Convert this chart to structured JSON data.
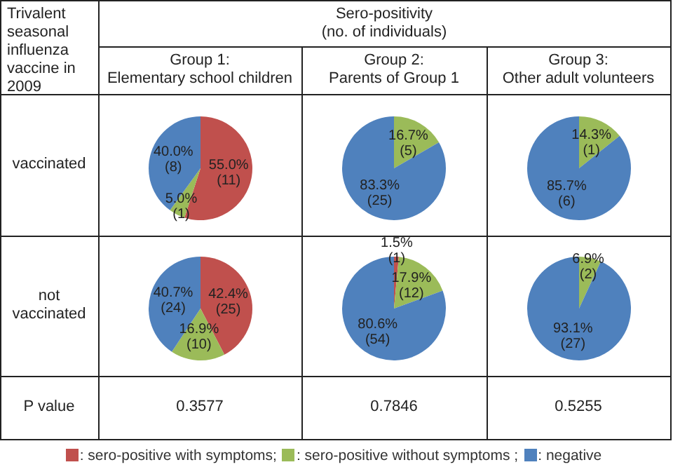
{
  "chart_data": [
    {
      "type": "other",
      "annotations": [
        "Trivalent seasonal influenza vaccine in 2009",
        "Sero-positivity\n(no. of individuals)",
        "Group 1:\nElementary school children",
        "Group 2:\nParents of Group 1",
        "Group 3:\nOther adult volunteers",
        "vaccinated",
        "not\nvaccinated",
        "P value",
        "0.3577",
        "0.7846",
        "0.5255",
        ": sero-positive with symptoms;",
        ": sero-positive without symptoms ;",
        ": negative"
      ]
    },
    {
      "type": "pie",
      "categories": [
        null,
        null,
        null
      ],
      "values": [
        11,
        1,
        8
      ],
      "colors": [
        "#c0504d",
        "#9bbb59",
        "#4f81bd"
      ],
      "value_labels": [
        "55.0%\n(11)",
        "5.0%\n(1)",
        "40.0%\n(8)"
      ]
    },
    {
      "type": "pie",
      "categories": [
        null,
        null,
        null
      ],
      "values": [
        0,
        5,
        25
      ],
      "colors": [
        "#c0504d",
        "#9bbb59",
        "#4f81bd"
      ],
      "value_labels": [
        null,
        "16.7%\n(5)",
        "83.3%\n(25)"
      ]
    },
    {
      "type": "pie",
      "categories": [
        null,
        null,
        null
      ],
      "values": [
        0,
        1,
        6
      ],
      "colors": [
        "#c0504d",
        "#9bbb59",
        "#4f81bd"
      ],
      "value_labels": [
        null,
        "14.3%\n(1)",
        "85.7%\n(6)"
      ]
    },
    {
      "type": "pie",
      "categories": [
        null,
        null,
        null
      ],
      "values": [
        25,
        10,
        24
      ],
      "colors": [
        "#c0504d",
        "#9bbb59",
        "#4f81bd"
      ],
      "value_labels": [
        "42.4%\n(25)",
        "16.9%\n(10)",
        "40.7%\n(24)"
      ]
    },
    {
      "type": "pie",
      "categories": [
        null,
        null,
        null
      ],
      "values": [
        1,
        12,
        54
      ],
      "colors": [
        "#c0504d",
        "#9bbb59",
        "#4f81bd"
      ],
      "value_labels": [
        "1.5%\n(1)",
        "17.9%\n(12)",
        "80.6%\n(54)"
      ]
    },
    {
      "type": "pie",
      "categories": [
        null,
        null,
        null
      ],
      "values": [
        0,
        2,
        27
      ],
      "colors": [
        "#c0504d",
        "#9bbb59",
        "#4f81bd"
      ],
      "value_labels": [
        null,
        "6.9%\n(2)",
        "93.1%\n(27)"
      ]
    }
  ]
}
